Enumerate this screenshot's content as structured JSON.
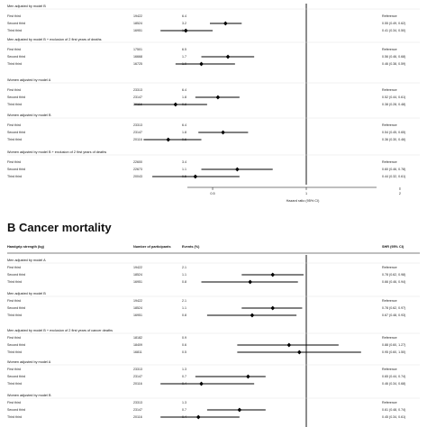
{
  "chart_data": [
    {
      "type": "forest",
      "panel": "A",
      "title": "",
      "xlabel": "Hazard ratio (95% CI)",
      "xticks": [
        0.5,
        1,
        2
      ],
      "xlim": [
        0.3,
        2.5
      ],
      "reference_line": 1,
      "groups": [
        {
          "label": "Men adjusted by model B",
          "rows": [
            {
              "label": "First third",
              "n": "19422",
              "events": "6.4",
              "hr": 1,
              "ci": null,
              "text": "Reference"
            },
            {
              "label": "Second third",
              "n": "18524",
              "events": "3.2",
              "hr": 0.55,
              "ci": [
                0.49,
                0.62
              ],
              "text": "0.55 (0.49, 0.62)"
            },
            {
              "label": "Third third",
              "n": "16951",
              "events": "1.8",
              "hr": 0.41,
              "ci": [
                0.34,
                0.5
              ],
              "text": "0.41 (0.34, 0.50)"
            }
          ]
        },
        {
          "label": "Men adjusted by model B + exclusion of 2 first years of deaths",
          "rows": [
            {
              "label": "First third",
              "n": "17501",
              "events": "6.5",
              "hr": 1,
              "ci": null,
              "text": "Reference"
            },
            {
              "label": "Second third",
              "n": "16668",
              "events": "1.7",
              "hr": 0.56,
              "ci": [
                0.46,
                0.68
              ],
              "text": "0.56 (0.46, 0.68)"
            },
            {
              "label": "Third third",
              "n": "16725",
              "events": "1.0",
              "hr": 0.46,
              "ci": [
                0.38,
                0.59
              ],
              "text": "0.46 (0.38, 0.59)"
            }
          ]
        },
        {
          "label": "Women adjusted by model A",
          "rows": [
            {
              "label": "First third",
              "n": "23313",
              "events": "6.4",
              "hr": 1,
              "ci": null,
              "text": "Reference"
            },
            {
              "label": "Second third",
              "n": "23147",
              "events": "1.8",
              "hr": 0.52,
              "ci": [
                0.44,
                0.61
              ],
              "text": "0.52 (0.44, 0.61)"
            },
            {
              "label": "Third third",
              "n": "20116",
              "events": "0.8",
              "hr": 0.38,
              "ci": [
                0.28,
                0.48
              ],
              "text": "0.38 (0.28, 0.48)"
            }
          ]
        },
        {
          "label": "Women adjusted by model B",
          "rows": [
            {
              "label": "First third",
              "n": "23313",
              "events": "6.4",
              "hr": 1,
              "ci": null,
              "text": "Reference"
            },
            {
              "label": "Second third",
              "n": "23147",
              "events": "1.8",
              "hr": 0.54,
              "ci": [
                0.45,
                0.65
              ],
              "text": "0.54 (0.45, 0.65)"
            },
            {
              "label": "Third third",
              "n": "20116",
              "events": "0.6",
              "hr": 0.36,
              "ci": [
                0.3,
                0.46
              ],
              "text": "0.36 (0.30, 0.46)"
            }
          ]
        },
        {
          "label": "Women adjusted by model B + exclusion of 2 first years of deaths",
          "rows": [
            {
              "label": "First third",
              "n": "22600",
              "events": "3.4",
              "hr": 1,
              "ci": null,
              "text": "Reference"
            },
            {
              "label": "Second third",
              "n": "22673",
              "events": "1.1",
              "hr": 0.6,
              "ci": [
                0.46,
                0.78
              ],
              "text": "0.60 (0.46, 0.78)"
            },
            {
              "label": "Third third",
              "n": "20043",
              "events": "0.5",
              "hr": 0.44,
              "ci": [
                0.32,
                0.61
              ],
              "text": "0.44 (0.32, 0.61)"
            }
          ]
        }
      ]
    },
    {
      "type": "forest",
      "panel": "B",
      "title": "B Cancer mortality",
      "header": {
        "strength": "Handgrip strength (kg)",
        "n": "Number of participants",
        "events": "Events (%)",
        "hr": "SHR (95% CI)"
      },
      "xlim": [
        0.3,
        2.5
      ],
      "reference_line": 1,
      "groups": [
        {
          "label": "Men adjusted by model A",
          "rows": [
            {
              "label": "First third",
              "n": "19422",
              "events": "2.1",
              "hr": 1,
              "ci": null,
              "text": "Reference"
            },
            {
              "label": "Second third",
              "n": "18524",
              "events": "1.1",
              "hr": 0.78,
              "ci": [
                0.62,
                0.98
              ],
              "text": "0.78 (0.62, 0.98)"
            },
            {
              "label": "Third third",
              "n": "16951",
              "events": "0.8",
              "hr": 0.66,
              "ci": [
                0.46,
                0.94
              ],
              "text": "0.66 (0.46, 0.94)"
            }
          ]
        },
        {
          "label": "Men adjusted by model B",
          "rows": [
            {
              "label": "First third",
              "n": "19422",
              "events": "2.1",
              "hr": 1,
              "ci": null,
              "text": "Reference"
            },
            {
              "label": "Second third",
              "n": "18524",
              "events": "1.1",
              "hr": 0.78,
              "ci": [
                0.62,
                0.97
              ],
              "text": "0.78 (0.62, 0.97)"
            },
            {
              "label": "Third third",
              "n": "16951",
              "events": "0.8",
              "hr": 0.67,
              "ci": [
                0.48,
                0.93
              ],
              "text": "0.67 (0.48, 0.93)"
            }
          ]
        },
        {
          "label": "Men adjusted by model B + exclusion of 2 first years of cancer deaths",
          "rows": [
            {
              "label": "First third",
              "n": "18182",
              "events": "0.9",
              "hr": 1,
              "ci": null,
              "text": "Reference"
            },
            {
              "label": "Second third",
              "n": "18409",
              "events": "0.6",
              "hr": 0.88,
              "ci": [
                0.6,
                1.27
              ],
              "text": "0.88 (0.60, 1.27)"
            },
            {
              "label": "Third third",
              "n": "16811",
              "events": "0.5",
              "hr": 0.95,
              "ci": [
                0.6,
                1.5
              ],
              "text": "0.95 (0.60, 1.50)"
            }
          ]
        },
        {
          "label": "Women adjusted by model A",
          "rows": [
            {
              "label": "First third",
              "n": "23313",
              "events": "1.3",
              "hr": 1,
              "ci": null,
              "text": "Reference"
            },
            {
              "label": "Second third",
              "n": "23147",
              "events": "0.7",
              "hr": 0.65,
              "ci": [
                0.44,
                0.74
              ],
              "text": "0.65 (0.44, 0.74)"
            },
            {
              "label": "Third third",
              "n": "20116",
              "events": "0.4",
              "hr": 0.46,
              "ci": [
                0.34,
                0.68
              ],
              "text": "0.46 (0.34, 0.68)"
            }
          ]
        },
        {
          "label": "Women adjusted by model B",
          "rows": [
            {
              "label": "First third",
              "n": "23313",
              "events": "1.3",
              "hr": 1,
              "ci": null,
              "text": "Reference"
            },
            {
              "label": "Second third",
              "n": "23147",
              "events": "0.7",
              "hr": 0.61,
              "ci": [
                0.48,
                0.74
              ],
              "text": "0.61 (0.48, 0.74)"
            },
            {
              "label": "Third third",
              "n": "20116",
              "events": "0.4",
              "hr": 0.45,
              "ci": [
                0.34,
                0.61
              ],
              "text": "0.45 (0.34, 0.61)"
            }
          ]
        }
      ]
    }
  ]
}
